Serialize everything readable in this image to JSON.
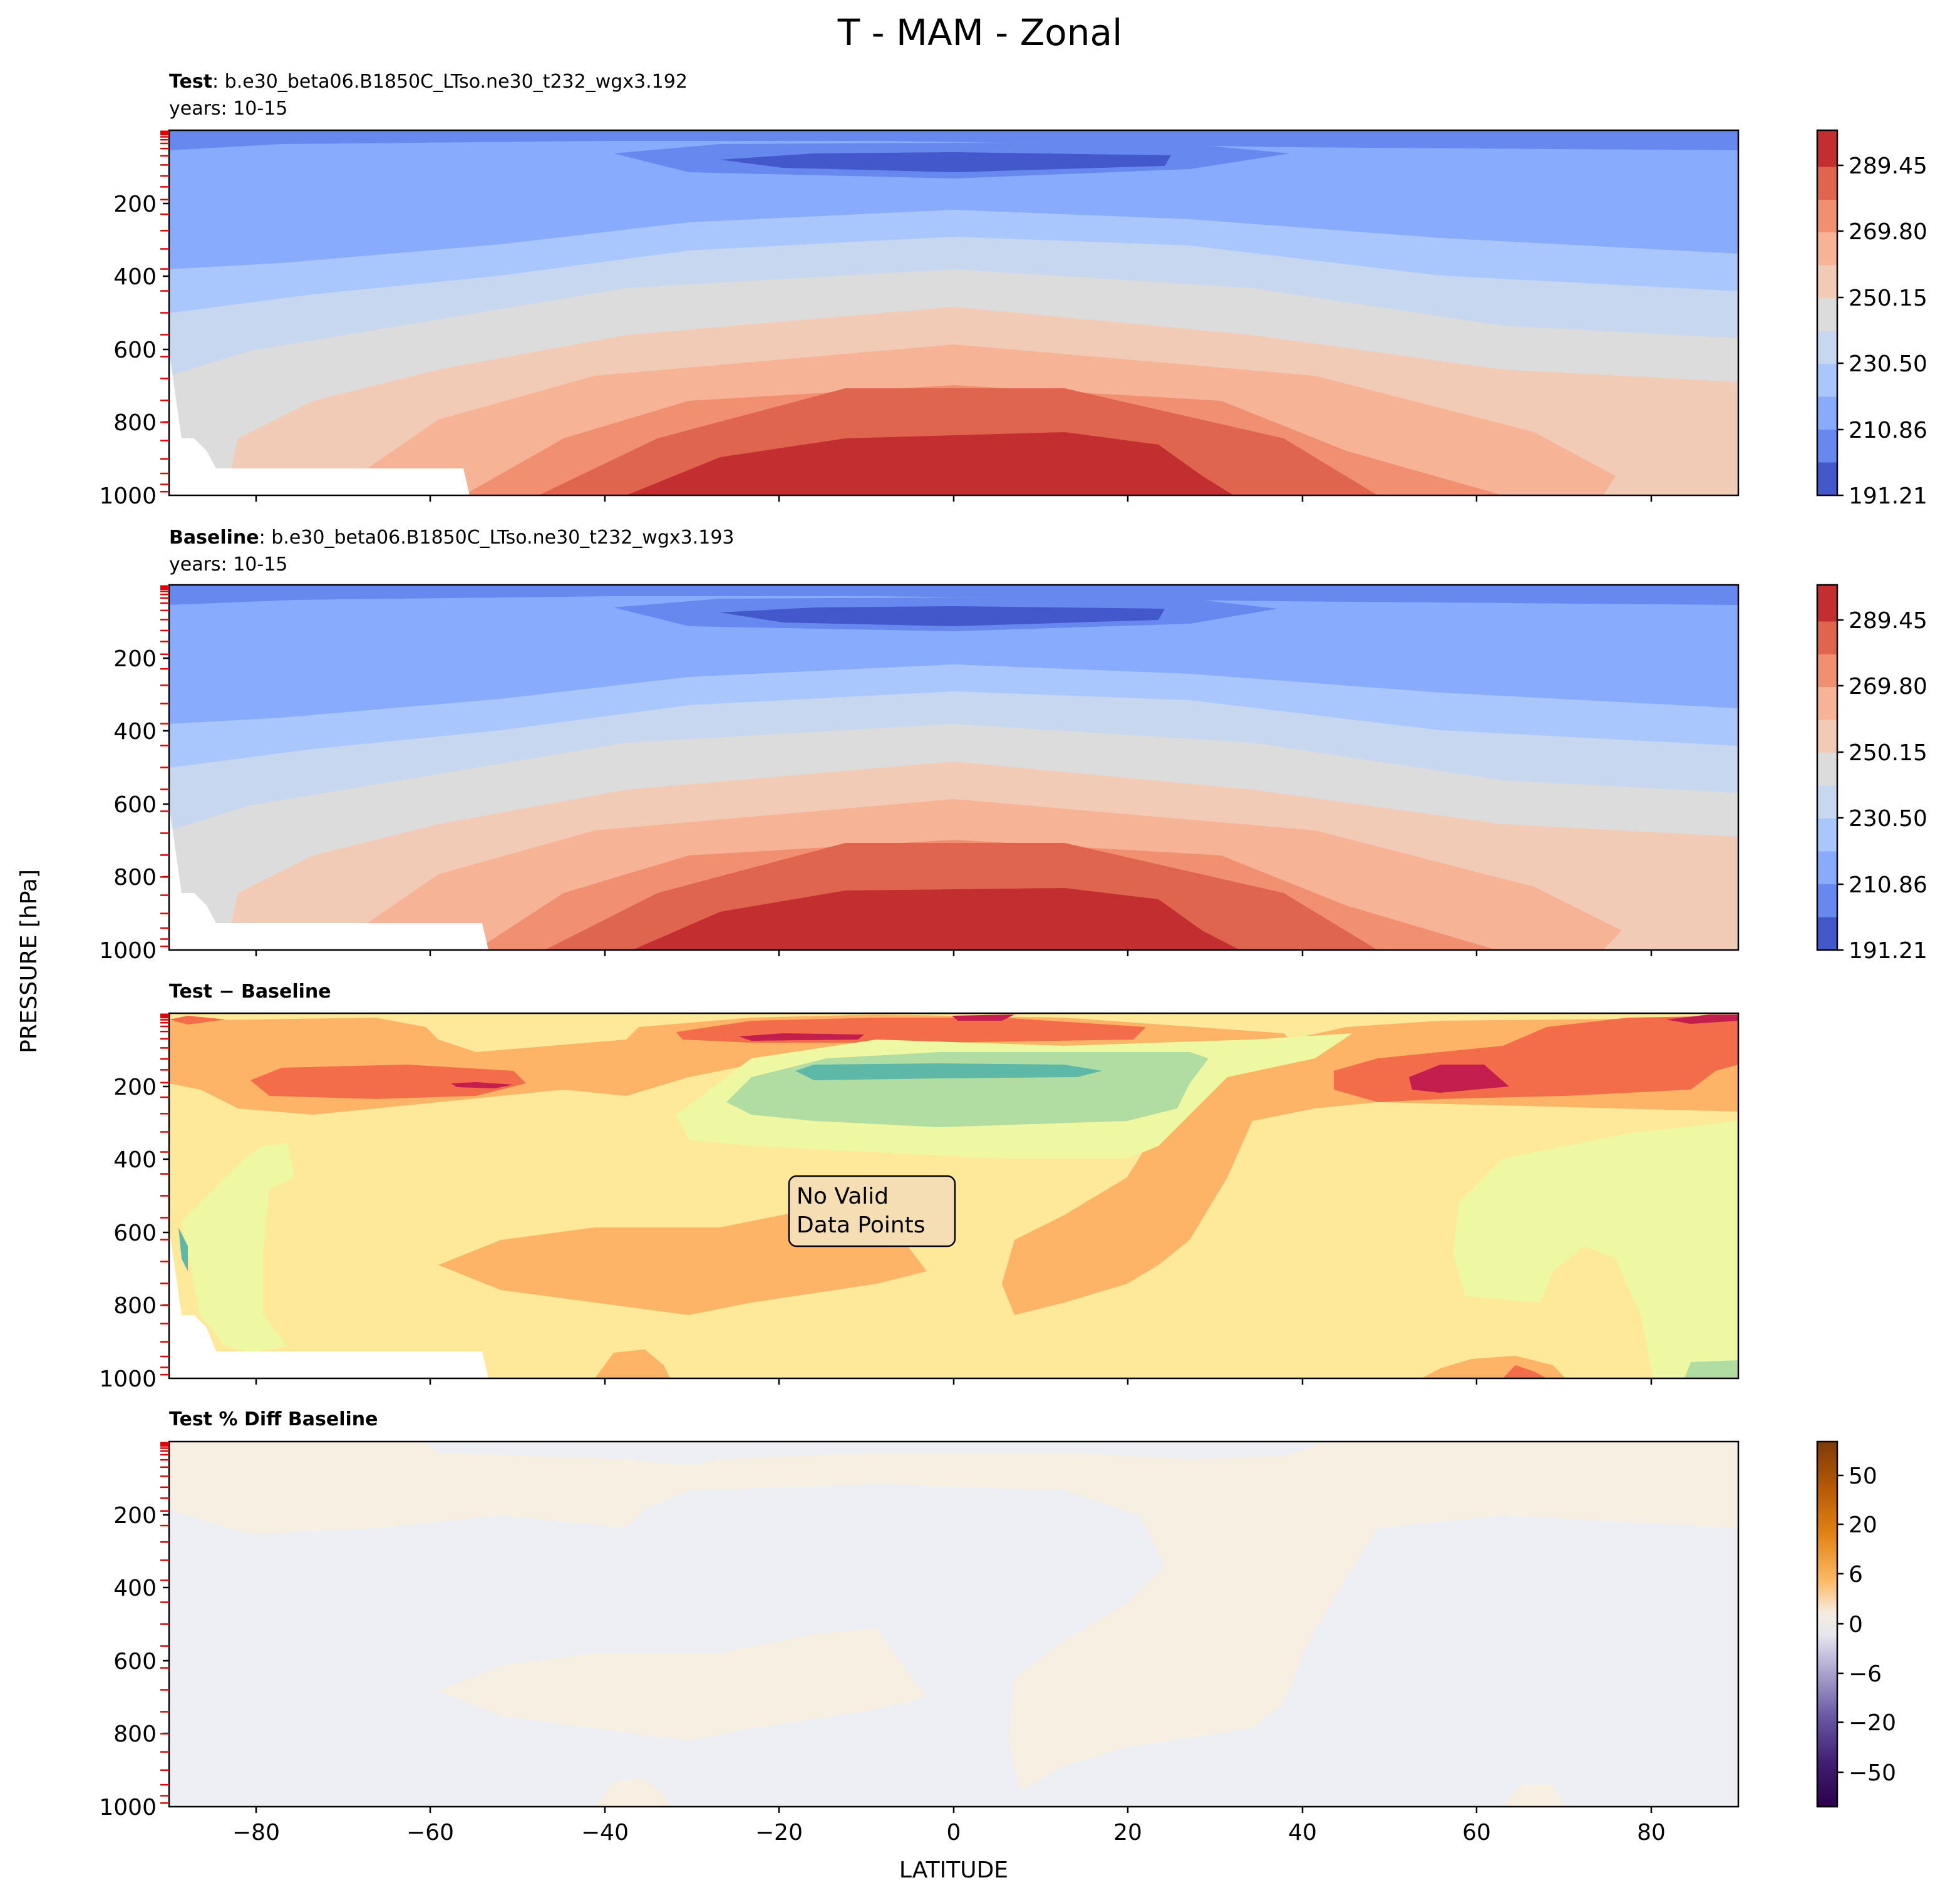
{
  "chart_data": {
    "type": "heatmap",
    "figure_title": "T - MAM - Zonal",
    "xlabel": "LATITUDE",
    "ylabel": "PRESSURE [hPa]",
    "x_range": [
      -90,
      90
    ],
    "y_range": [
      1000,
      0
    ],
    "x_ticks": [
      -80,
      -60,
      -40,
      -20,
      0,
      20,
      40,
      60,
      80
    ],
    "x_tick_labels": [
      "−80",
      "−60",
      "−40",
      "−20",
      "0",
      "20",
      "40",
      "60",
      "80"
    ],
    "y_ticks": [
      200,
      400,
      600,
      800,
      1000
    ],
    "y_tick_labels": [
      "200",
      "400",
      "600",
      "800",
      "1000"
    ],
    "model_level_ticks_hPa": [
      3,
      5,
      8,
      12,
      18,
      26,
      36,
      50,
      70,
      95,
      125,
      155,
      190,
      230,
      275,
      325,
      380,
      440,
      500,
      560,
      620,
      680,
      740,
      800,
      850,
      900,
      940,
      970,
      990
    ],
    "panels": [
      {
        "id": "test",
        "title_bold": "Test",
        "title_rest": ": b.e30_beta06.B1850C_LTso.ne30_t232_wgx3.192",
        "subtitle": "years: 10-15",
        "colormap": "coolwarm",
        "colorbar_ticks": [
          191.21,
          210.86,
          230.5,
          250.15,
          269.8,
          289.45
        ],
        "colorbar_tick_labels": [
          "191.21",
          "210.86",
          "230.50",
          "250.15",
          "269.80",
          "289.45"
        ],
        "colorbar_range": [
          191.21,
          299.3
        ]
      },
      {
        "id": "baseline",
        "title_bold": "Baseline",
        "title_rest": ": b.e30_beta06.B1850C_LTso.ne30_t232_wgx3.193",
        "subtitle": "years: 10-15",
        "colormap": "coolwarm",
        "colorbar_ticks": [
          191.21,
          210.86,
          230.5,
          250.15,
          269.8,
          289.45
        ],
        "colorbar_tick_labels": [
          "191.21",
          "210.86",
          "230.50",
          "250.15",
          "269.80",
          "289.45"
        ],
        "colorbar_range": [
          191.21,
          299.3
        ]
      },
      {
        "id": "diff",
        "title_bold": "Test − Baseline",
        "colormap": "spectral",
        "annotation": [
          "No Valid",
          "Data Points"
        ]
      },
      {
        "id": "pctdiff",
        "title_bold": "Test % Diff Baseline",
        "colormap": "puor",
        "colorbar_ticks": [
          50,
          20,
          6,
          0,
          -6,
          -20,
          -50
        ],
        "colorbar_tick_labels": [
          "50",
          "20",
          "6",
          "0",
          "−6",
          "−20",
          "−50"
        ]
      }
    ]
  }
}
